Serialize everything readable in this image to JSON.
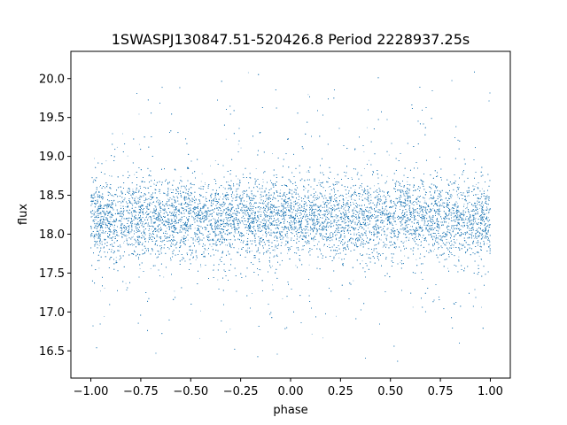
{
  "chart_data": {
    "type": "scatter",
    "title": "1SWASPJ130847.51-520426.8 Period 2228937.25s",
    "xlabel": "phase",
    "ylabel": "flux",
    "xlim": [
      -1.1,
      1.1
    ],
    "ylim": [
      16.15,
      20.35
    ],
    "xticks": [
      -1.0,
      -0.75,
      -0.5,
      -0.25,
      0.0,
      0.25,
      0.5,
      0.75,
      1.0
    ],
    "xtick_labels": [
      "−1.00",
      "−0.75",
      "−0.50",
      "−0.25",
      "0.00",
      "0.25",
      "0.50",
      "0.75",
      "1.00"
    ],
    "yticks": [
      16.5,
      17.0,
      17.5,
      18.0,
      18.5,
      19.0,
      19.5,
      20.0
    ],
    "ytick_labels": [
      "16.5",
      "17.0",
      "17.5",
      "18.0",
      "18.5",
      "19.0",
      "19.5",
      "20.0"
    ],
    "grid": false,
    "legend": "none",
    "point_color": "#1f77b4",
    "series": [
      {
        "phase_range": [
          -1.0,
          1.0
        ],
        "flux_center": 18.2,
        "flux_core_range": [
          17.7,
          18.7
        ],
        "flux_full_range": [
          16.35,
          20.15
        ],
        "approx_points": 30000
      }
    ]
  }
}
